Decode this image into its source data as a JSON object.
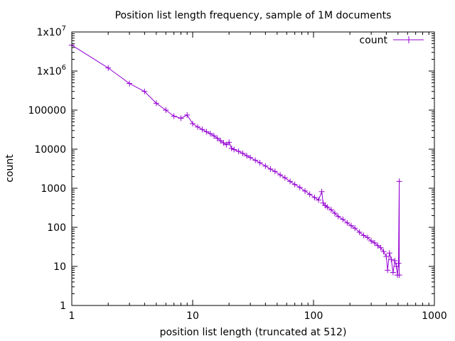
{
  "chart_data": {
    "type": "scatter",
    "title": "Position list length frequency, sample of 1M documents",
    "xlabel": "position list length (truncated at 512)",
    "ylabel": "count",
    "xscale": "log",
    "yscale": "log",
    "xlim": [
      1,
      1000
    ],
    "ylim": [
      1,
      10000000
    ],
    "x_ticks": [
      {
        "value": 1,
        "label": "1"
      },
      {
        "value": 10,
        "label": "10"
      },
      {
        "value": 100,
        "label": "100"
      },
      {
        "value": 1000,
        "label": "1000"
      }
    ],
    "y_ticks": [
      {
        "value": 1,
        "label": "1"
      },
      {
        "value": 10,
        "label": "10"
      },
      {
        "value": 100,
        "label": "100"
      },
      {
        "value": 1000,
        "label": "1000"
      },
      {
        "value": 10000,
        "label": "10000"
      },
      {
        "value": 100000,
        "label": "100000"
      },
      {
        "value": 1000000,
        "base": "1x10",
        "exp": "6"
      },
      {
        "value": 10000000,
        "base": "1x10",
        "exp": "7"
      }
    ],
    "legend": {
      "position": "top-right",
      "entries": [
        "count"
      ]
    },
    "colors": {
      "series": "#9400d3"
    },
    "series": [
      {
        "name": "count",
        "marker": "plus",
        "line": true,
        "points": [
          [
            1,
            4600000
          ],
          [
            2,
            1200000
          ],
          [
            3,
            480000
          ],
          [
            4,
            300000
          ],
          [
            5,
            150000
          ],
          [
            6,
            100000
          ],
          [
            7,
            70000
          ],
          [
            8,
            62000
          ],
          [
            9,
            75000
          ],
          [
            10,
            45000
          ],
          [
            11,
            37000
          ],
          [
            12,
            32000
          ],
          [
            13,
            28000
          ],
          [
            14,
            25000
          ],
          [
            15,
            22000
          ],
          [
            16,
            19000
          ],
          [
            17,
            16500
          ],
          [
            18,
            14500
          ],
          [
            19,
            13000
          ],
          [
            20,
            15000
          ],
          [
            21,
            10500
          ],
          [
            22,
            9800
          ],
          [
            24,
            8800
          ],
          [
            26,
            7800
          ],
          [
            28,
            6800
          ],
          [
            30,
            6100
          ],
          [
            33,
            5200
          ],
          [
            36,
            4500
          ],
          [
            40,
            3700
          ],
          [
            44,
            3100
          ],
          [
            48,
            2700
          ],
          [
            53,
            2200
          ],
          [
            58,
            1850
          ],
          [
            64,
            1500
          ],
          [
            70,
            1250
          ],
          [
            77,
            1050
          ],
          [
            85,
            850
          ],
          [
            93,
            700
          ],
          [
            102,
            580
          ],
          [
            110,
            500
          ],
          [
            117,
            820
          ],
          [
            120,
            420
          ],
          [
            125,
            360
          ],
          [
            130,
            330
          ],
          [
            140,
            280
          ],
          [
            150,
            230
          ],
          [
            160,
            190
          ],
          [
            175,
            160
          ],
          [
            190,
            130
          ],
          [
            205,
            110
          ],
          [
            220,
            95
          ],
          [
            240,
            75
          ],
          [
            260,
            62
          ],
          [
            280,
            55
          ],
          [
            300,
            45
          ],
          [
            320,
            40
          ],
          [
            340,
            34
          ],
          [
            360,
            30
          ],
          [
            380,
            24
          ],
          [
            400,
            18
          ],
          [
            410,
            8
          ],
          [
            425,
            22
          ],
          [
            440,
            15
          ],
          [
            455,
            7
          ],
          [
            470,
            14
          ],
          [
            485,
            10
          ],
          [
            495,
            6
          ],
          [
            505,
            12
          ],
          [
            512,
            1500
          ],
          [
            512,
            6
          ]
        ]
      }
    ]
  }
}
